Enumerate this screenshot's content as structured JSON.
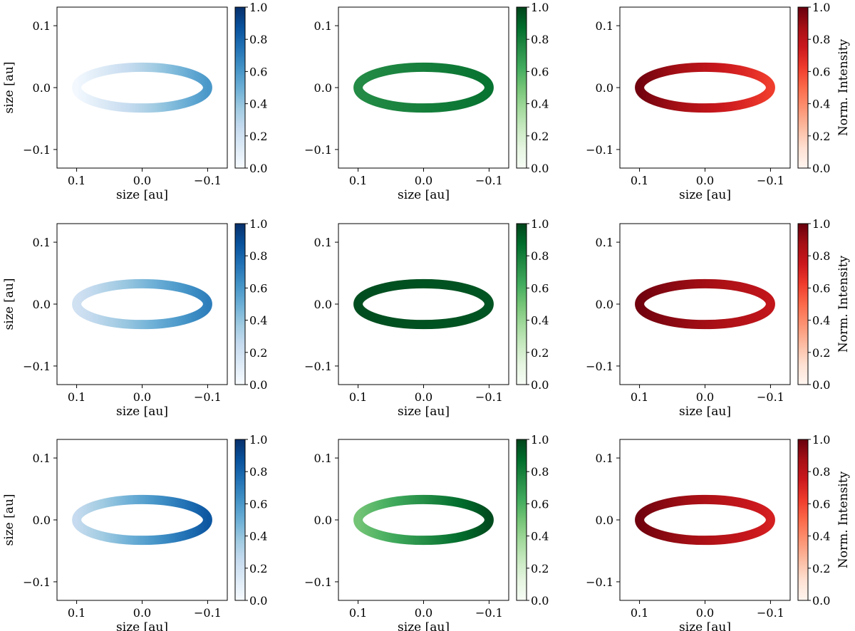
{
  "figure": {
    "layout": {
      "rows": 3,
      "cols": 3
    },
    "colormaps": {
      "Blues": [
        "#f7fbff",
        "#deebf7",
        "#c6dbef",
        "#9ecae1",
        "#6baed6",
        "#4292c6",
        "#2171b5",
        "#08519c",
        "#08306b"
      ],
      "Greens": [
        "#f7fcf5",
        "#e5f5e0",
        "#c7e9c0",
        "#a1d99b",
        "#74c476",
        "#41ab5d",
        "#238b45",
        "#006d2c",
        "#00441b"
      ],
      "Reds": [
        "#fff5f0",
        "#fee0d2",
        "#fcbba1",
        "#fc9272",
        "#fb6a4a",
        "#ef3b2c",
        "#cb181d",
        "#a50f15",
        "#67000d"
      ]
    }
  },
  "chart_data": [
    {
      "type": "heatmap",
      "row": 0,
      "col": 0,
      "cmap": "Blues",
      "xlabel": "size [au]",
      "ylabel": "size [au]",
      "colorbar_label": "",
      "xlim": [
        0.13,
        -0.13
      ],
      "ylim": [
        -0.13,
        0.13
      ],
      "xticks": [
        0.1,
        0.0,
        -0.1
      ],
      "yticks": [
        0.1,
        0.0,
        -0.1
      ],
      "xtick_labels": [
        "0.1",
        "0.0",
        "−0.1"
      ],
      "ytick_labels": [
        "0.1",
        "0.0",
        "−0.1"
      ],
      "colorbar_ticks": [
        "0.0",
        "0.2",
        "0.4",
        "0.6",
        "0.8",
        "1.0"
      ],
      "clim": [
        0,
        1
      ],
      "ellipse": {
        "a": 0.1,
        "b": 0.033
      },
      "intensity_far_side": 0.02,
      "intensity_near_side": 0.6
    },
    {
      "type": "heatmap",
      "row": 0,
      "col": 1,
      "cmap": "Greens",
      "xlabel": "size [au]",
      "ylabel": "",
      "colorbar_label": "",
      "xlim": [
        0.13,
        -0.13
      ],
      "ylim": [
        -0.13,
        0.13
      ],
      "xticks": [
        0.1,
        0.0,
        -0.1
      ],
      "yticks": [
        0.1,
        0.0,
        -0.1
      ],
      "xtick_labels": [
        "0.1",
        "0.0",
        "−0.1"
      ],
      "ytick_labels": [
        "0.1",
        "0.0",
        "−0.1"
      ],
      "colorbar_ticks": [
        "0.0",
        "0.2",
        "0.4",
        "0.6",
        "0.8",
        "1.0"
      ],
      "clim": [
        0,
        1
      ],
      "ellipse": {
        "a": 0.1,
        "b": 0.033
      },
      "intensity_far_side": 0.75,
      "intensity_near_side": 0.85
    },
    {
      "type": "heatmap",
      "row": 0,
      "col": 2,
      "cmap": "Reds",
      "xlabel": "size [au]",
      "ylabel": "",
      "colorbar_label": "Norm. Intensity",
      "xlim": [
        0.13,
        -0.13
      ],
      "ylim": [
        -0.13,
        0.13
      ],
      "xticks": [
        0.1,
        0.0,
        -0.1
      ],
      "yticks": [
        0.1,
        0.0,
        -0.1
      ],
      "xtick_labels": [
        "0.1",
        "0.0",
        "−0.1"
      ],
      "ytick_labels": [
        "0.1",
        "0.0",
        "−0.1"
      ],
      "colorbar_ticks": [
        "0.0",
        "0.2",
        "0.4",
        "0.6",
        "0.8",
        "1.0"
      ],
      "clim": [
        0,
        1
      ],
      "ellipse": {
        "a": 0.1,
        "b": 0.033
      },
      "intensity_far_side": 0.98,
      "intensity_near_side": 0.62
    },
    {
      "type": "heatmap",
      "row": 1,
      "col": 0,
      "cmap": "Blues",
      "xlabel": "size [au]",
      "ylabel": "size [au]",
      "colorbar_label": "",
      "xlim": [
        0.13,
        -0.13
      ],
      "ylim": [
        -0.13,
        0.13
      ],
      "xticks": [
        0.1,
        0.0,
        -0.1
      ],
      "yticks": [
        0.1,
        0.0,
        -0.1
      ],
      "xtick_labels": [
        "0.1",
        "0.0",
        "−0.1"
      ],
      "ytick_labels": [
        "0.1",
        "0.0",
        "−0.1"
      ],
      "colorbar_ticks": [
        "0.0",
        "0.2",
        "0.4",
        "0.6",
        "0.8",
        "1.0"
      ],
      "clim": [
        0,
        1
      ],
      "ellipse": {
        "a": 0.1,
        "b": 0.033
      },
      "intensity_far_side": 0.2,
      "intensity_near_side": 0.7
    },
    {
      "type": "heatmap",
      "row": 1,
      "col": 1,
      "cmap": "Greens",
      "xlabel": "size [au]",
      "ylabel": "",
      "colorbar_label": "",
      "xlim": [
        0.13,
        -0.13
      ],
      "ylim": [
        -0.13,
        0.13
      ],
      "xticks": [
        0.1,
        0.0,
        -0.1
      ],
      "yticks": [
        0.1,
        0.0,
        -0.1
      ],
      "xtick_labels": [
        "0.1",
        "0.0",
        "−0.1"
      ],
      "ytick_labels": [
        "0.1",
        "0.0",
        "−0.1"
      ],
      "colorbar_ticks": [
        "0.0",
        "0.2",
        "0.4",
        "0.6",
        "0.8",
        "1.0"
      ],
      "clim": [
        0,
        1
      ],
      "ellipse": {
        "a": 0.1,
        "b": 0.033
      },
      "intensity_far_side": 0.97,
      "intensity_near_side": 0.95
    },
    {
      "type": "heatmap",
      "row": 1,
      "col": 2,
      "cmap": "Reds",
      "xlabel": "size [au]",
      "ylabel": "",
      "colorbar_label": "Norm. Intensity",
      "xlim": [
        0.13,
        -0.13
      ],
      "ylim": [
        -0.13,
        0.13
      ],
      "xticks": [
        0.1,
        0.0,
        -0.1
      ],
      "yticks": [
        0.1,
        0.0,
        -0.1
      ],
      "xtick_labels": [
        "0.1",
        "0.0",
        "−0.1"
      ],
      "ytick_labels": [
        "0.1",
        "0.0",
        "−0.1"
      ],
      "colorbar_ticks": [
        "0.0",
        "0.2",
        "0.4",
        "0.6",
        "0.8",
        "1.0"
      ],
      "clim": [
        0,
        1
      ],
      "ellipse": {
        "a": 0.1,
        "b": 0.033
      },
      "intensity_far_side": 0.98,
      "intensity_near_side": 0.78
    },
    {
      "type": "heatmap",
      "row": 2,
      "col": 0,
      "cmap": "Blues",
      "xlabel": "size [au]",
      "ylabel": "size [au]",
      "colorbar_label": "",
      "xlim": [
        0.13,
        -0.13
      ],
      "ylim": [
        -0.13,
        0.13
      ],
      "xticks": [
        0.1,
        0.0,
        -0.1
      ],
      "yticks": [
        0.1,
        0.0,
        -0.1
      ],
      "xtick_labels": [
        "0.1",
        "0.0",
        "−0.1"
      ],
      "ytick_labels": [
        "0.1",
        "0.0",
        "−0.1"
      ],
      "colorbar_ticks": [
        "0.0",
        "0.2",
        "0.4",
        "0.6",
        "0.8",
        "1.0"
      ],
      "clim": [
        0,
        1
      ],
      "ellipse": {
        "a": 0.1,
        "b": 0.033
      },
      "intensity_far_side": 0.25,
      "intensity_near_side": 0.85
    },
    {
      "type": "heatmap",
      "row": 2,
      "col": 1,
      "cmap": "Greens",
      "xlabel": "size [au]",
      "ylabel": "",
      "colorbar_label": "",
      "xlim": [
        0.13,
        -0.13
      ],
      "ylim": [
        -0.13,
        0.13
      ],
      "xticks": [
        0.1,
        0.0,
        -0.1
      ],
      "yticks": [
        0.1,
        0.0,
        -0.1
      ],
      "xtick_labels": [
        "0.1",
        "0.0",
        "−0.1"
      ],
      "ytick_labels": [
        "0.1",
        "0.0",
        "−0.1"
      ],
      "colorbar_ticks": [
        "0.0",
        "0.2",
        "0.4",
        "0.6",
        "0.8",
        "1.0"
      ],
      "clim": [
        0,
        1
      ],
      "ellipse": {
        "a": 0.1,
        "b": 0.033
      },
      "intensity_far_side": 0.5,
      "intensity_near_side": 0.98
    },
    {
      "type": "heatmap",
      "row": 2,
      "col": 2,
      "cmap": "Reds",
      "xlabel": "size [au]",
      "ylabel": "",
      "colorbar_label": "Norm. Intensity",
      "xlim": [
        0.13,
        -0.13
      ],
      "ylim": [
        -0.13,
        0.13
      ],
      "xticks": [
        0.1,
        0.0,
        -0.1
      ],
      "yticks": [
        0.1,
        0.0,
        -0.1
      ],
      "xtick_labels": [
        "0.1",
        "0.0",
        "−0.1"
      ],
      "ytick_labels": [
        "0.1",
        "0.0",
        "−0.1"
      ],
      "colorbar_ticks": [
        "0.0",
        "0.2",
        "0.4",
        "0.6",
        "0.8",
        "1.0"
      ],
      "clim": [
        0,
        1
      ],
      "ellipse": {
        "a": 0.1,
        "b": 0.033
      },
      "intensity_far_side": 0.98,
      "intensity_near_side": 0.72
    }
  ]
}
